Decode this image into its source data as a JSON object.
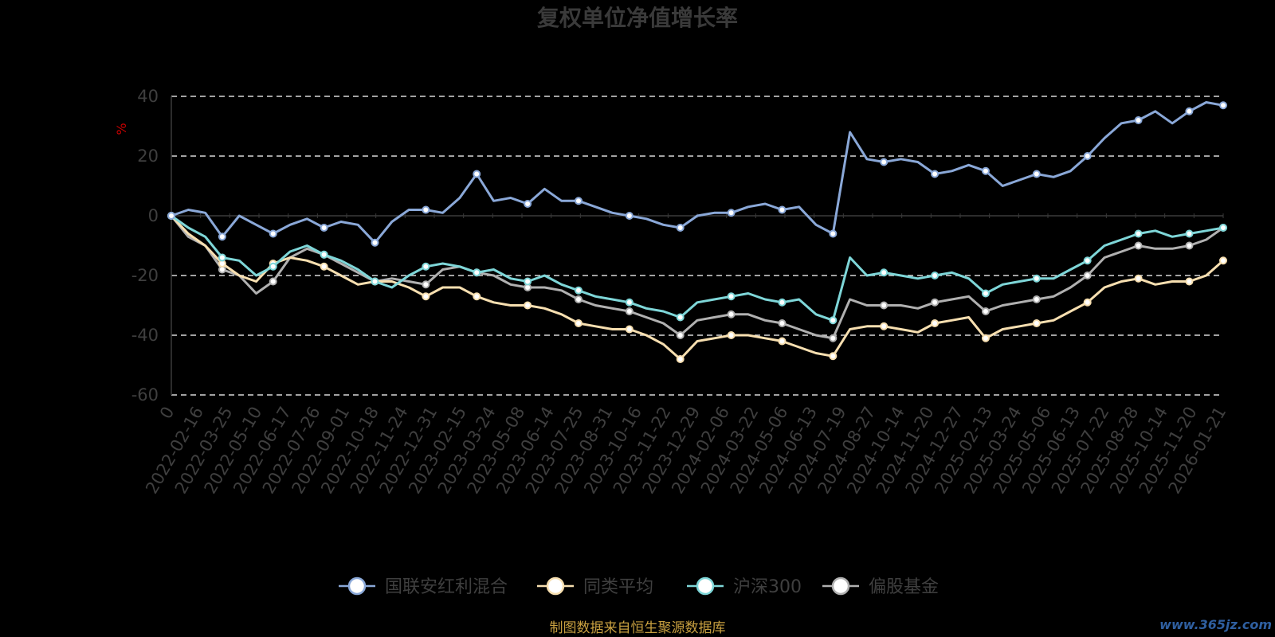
{
  "chart_data": {
    "type": "line",
    "title": "复权单位净值增长率",
    "ylabel": "%",
    "ylim": [
      -60,
      40
    ],
    "yticks": [
      40,
      20,
      0,
      -20,
      -40,
      -60
    ],
    "grid": "dashed-horizontal",
    "legend_position": "bottom-center",
    "x_tick_labels": [
      "0",
      "2022-02-16",
      "2022-03-25",
      "2022-05-10",
      "2022-06-17",
      "2022-07-26",
      "2022-09-01",
      "2022-10-18",
      "2022-11-24",
      "2022-12-31",
      "2023-02-15",
      "2023-03-24",
      "2023-05-08",
      "2023-06-14",
      "2023-07-25",
      "2023-08-31",
      "2023-10-16",
      "2023-11-22",
      "2023-12-29",
      "2024-02-06",
      "2024-03-22",
      "2024-05-06",
      "2024-06-13",
      "2024-07-19",
      "2024-08-27",
      "2024-10-14",
      "2024-11-20",
      "2024-12-27",
      "2025-02-13",
      "2025-03-24",
      "2025-05-06",
      "2025-06-13",
      "2025-07-22",
      "2025-08-28",
      "2025-10-14",
      "2025-11-20",
      "2026-01-21"
    ],
    "series": [
      {
        "name": "国联安红利混合",
        "color": "#8aa8d8",
        "values": [
          0,
          2,
          1,
          -7,
          0,
          -3,
          -6,
          -3,
          -1,
          -4,
          -2,
          -3,
          -9,
          -2,
          2,
          2,
          1,
          6,
          14,
          5,
          6,
          4,
          9,
          5,
          5,
          3,
          1,
          0,
          -1,
          -3,
          -4,
          0,
          1,
          1,
          3,
          4,
          2,
          3,
          -3,
          -6,
          28,
          19,
          18,
          19,
          18,
          14,
          15,
          17,
          15,
          10,
          12,
          14,
          13,
          15,
          20,
          26,
          31,
          32,
          35,
          31,
          35,
          38,
          37
        ]
      },
      {
        "name": "同类平均",
        "color": "#f7dfb0",
        "values": [
          0,
          -6,
          -10,
          -16,
          -20,
          -22,
          -16,
          -14,
          -15,
          -17,
          -20,
          -23,
          -22,
          -22,
          -24,
          -27,
          -24,
          -24,
          -27,
          -29,
          -30,
          -30,
          -31,
          -33,
          -36,
          -37,
          -38,
          -38,
          -40,
          -43,
          -48,
          -42,
          -41,
          -40,
          -40,
          -41,
          -42,
          -44,
          -46,
          -47,
          -38,
          -37,
          -37,
          -38,
          -39,
          -36,
          -35,
          -34,
          -41,
          -38,
          -37,
          -36,
          -35,
          -32,
          -29,
          -24,
          -22,
          -21,
          -23,
          -22,
          -22,
          -20,
          -15
        ]
      },
      {
        "name": "沪深300",
        "color": "#7ed6d8",
        "values": [
          0,
          -4,
          -7,
          -14,
          -15,
          -20,
          -17,
          -12,
          -10,
          -13,
          -15,
          -18,
          -22,
          -24,
          -20,
          -17,
          -16,
          -17,
          -19,
          -18,
          -21,
          -22,
          -20,
          -23,
          -25,
          -27,
          -28,
          -29,
          -31,
          -32,
          -34,
          -29,
          -28,
          -27,
          -26,
          -28,
          -29,
          -28,
          -33,
          -35,
          -14,
          -20,
          -19,
          -20,
          -21,
          -20,
          -19,
          -21,
          -26,
          -23,
          -22,
          -21,
          -21,
          -18,
          -15,
          -10,
          -8,
          -6,
          -5,
          -7,
          -6,
          -5,
          -4
        ]
      },
      {
        "name": "偏股基金",
        "color": "#b0b0b0",
        "values": [
          0,
          -7,
          -10,
          -18,
          -20,
          -26,
          -22,
          -14,
          -11,
          -13,
          -16,
          -19,
          -22,
          -21,
          -22,
          -23,
          -18,
          -17,
          -19,
          -20,
          -23,
          -24,
          -24,
          -25,
          -28,
          -30,
          -31,
          -32,
          -34,
          -36,
          -40,
          -35,
          -34,
          -33,
          -33,
          -35,
          -36,
          -38,
          -40,
          -41,
          -28,
          -30,
          -30,
          -30,
          -31,
          -29,
          -28,
          -27,
          -32,
          -30,
          -29,
          -28,
          -27,
          -24,
          -20,
          -14,
          -12,
          -10,
          -11,
          -11,
          -10,
          -8,
          -4
        ]
      }
    ]
  },
  "legend_entries": [
    "国联安红利混合",
    "同类平均",
    "沪深300",
    "偏股基金"
  ],
  "source_note": "制图数据来自恒生聚源数据库",
  "watermark": "www.365jz.com"
}
